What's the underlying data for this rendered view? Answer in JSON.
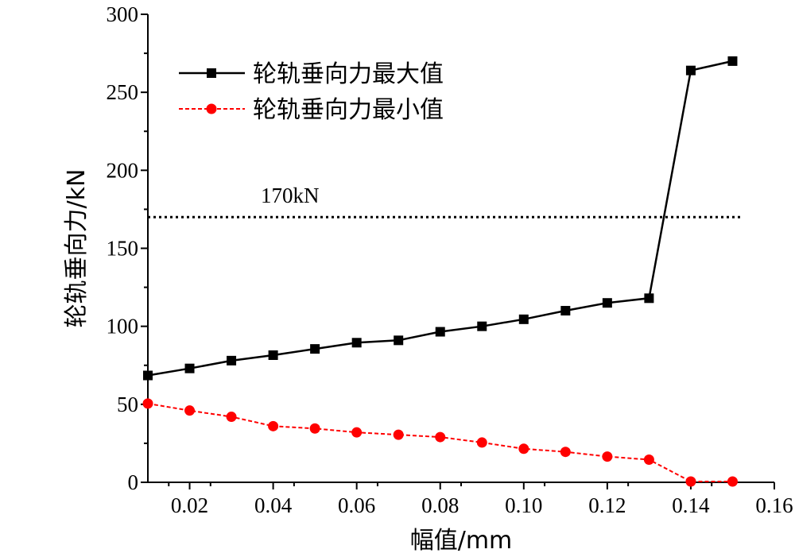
{
  "chart_data": {
    "type": "line",
    "xlabel": "幅值/mm",
    "ylabel": "轮轨垂向力/kN",
    "xlim": [
      0.01,
      0.16
    ],
    "ylim": [
      0,
      300
    ],
    "xticks": [
      0.02,
      0.04,
      0.06,
      0.08,
      0.1,
      0.12,
      0.14,
      0.16
    ],
    "xtick_labels": [
      "0.02",
      "0.04",
      "0.06",
      "0.08",
      "0.10",
      "0.12",
      "0.14",
      "0.16"
    ],
    "yticks": [
      0,
      50,
      100,
      150,
      200,
      250,
      300
    ],
    "ytick_labels": [
      "0",
      "50",
      "100",
      "150",
      "200",
      "250",
      "300"
    ],
    "grid": false,
    "legend_position": "top-left",
    "x": [
      0.01,
      0.02,
      0.03,
      0.04,
      0.05,
      0.06,
      0.07,
      0.08,
      0.09,
      0.1,
      0.11,
      0.12,
      0.13,
      0.14,
      0.15
    ],
    "series": [
      {
        "name": "轮轨垂向力最大值",
        "color": "#000000",
        "marker": "square",
        "line_style": "solid",
        "values": [
          68.5,
          73,
          78,
          81.5,
          85.5,
          89.5,
          91,
          96.5,
          100,
          104.5,
          110,
          115,
          118,
          264,
          270
        ]
      },
      {
        "name": "轮轨垂向力最小值",
        "color": "#ff0000",
        "marker": "circle",
        "line_style": "dashed",
        "values": [
          50.5,
          46,
          42,
          36,
          34.5,
          32,
          30.5,
          29,
          25.5,
          21.5,
          19.5,
          16.5,
          14.5,
          0.5,
          0.5
        ]
      }
    ],
    "reference_line": {
      "y": 170,
      "label": "170kN",
      "style": "dotted",
      "color": "#000000"
    }
  }
}
